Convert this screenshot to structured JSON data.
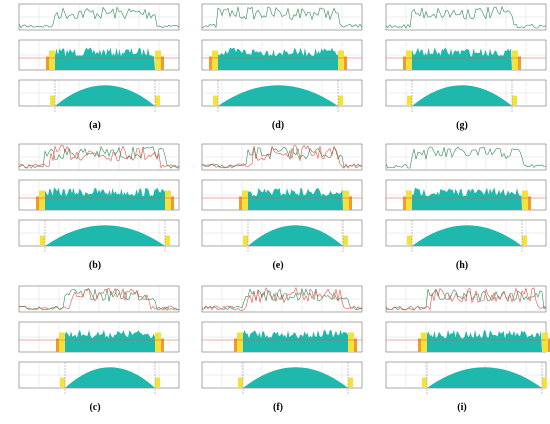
{
  "figure": {
    "panels": [
      {
        "id": "a",
        "label": "(a)"
      },
      {
        "id": "b",
        "label": "(b)"
      },
      {
        "id": "c",
        "label": "(c)"
      },
      {
        "id": "d",
        "label": "(d)"
      },
      {
        "id": "e",
        "label": "(e)"
      },
      {
        "id": "f",
        "label": "(f)"
      },
      {
        "id": "g",
        "label": "(g)"
      },
      {
        "id": "h",
        "label": "(h)"
      },
      {
        "id": "i",
        "label": "(i)"
      }
    ],
    "colors": {
      "teal": "#1fb8ad",
      "yellow": "#f3e23a",
      "orange": "#f29a2e",
      "red_line": "#e5534b",
      "green_line": "#2e8b57",
      "gray_line": "#888888",
      "grid": "#d6d6d6",
      "axis": "#555555"
    }
  }
}
